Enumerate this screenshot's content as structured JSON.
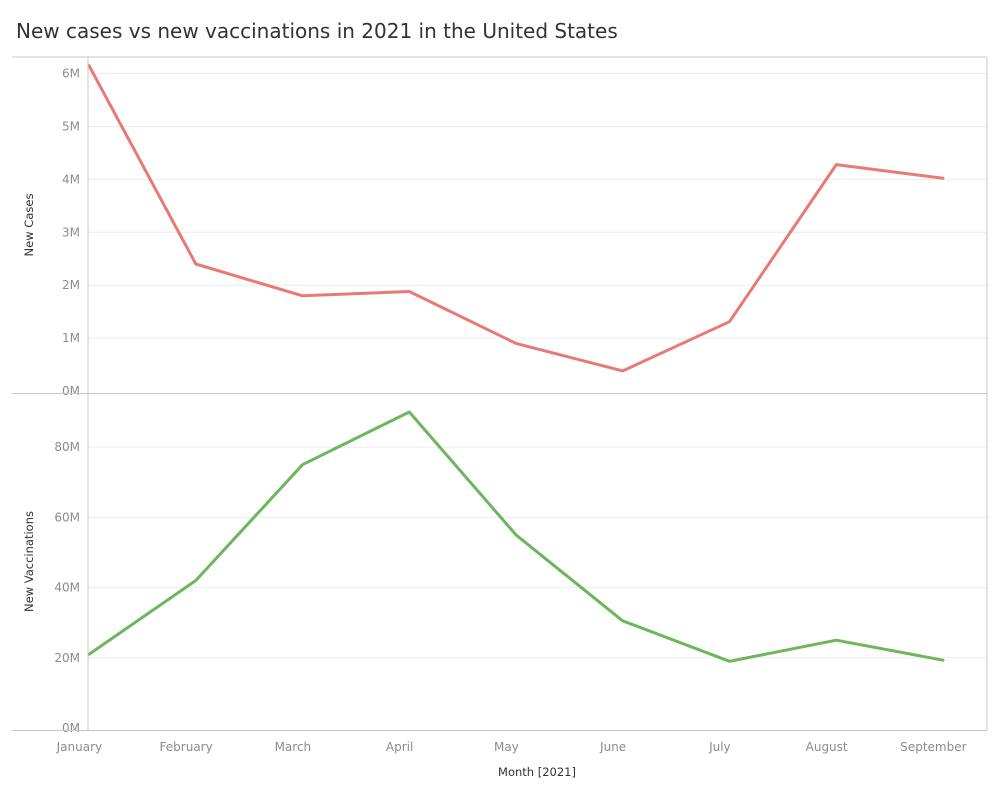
{
  "title": "New cases vs new vaccinations in 2021 in the United States",
  "chart_data": {
    "type": "line",
    "title": "New cases vs new vaccinations in 2021 in the United States",
    "xlabel": "Month [2021]",
    "categories": [
      "January",
      "February",
      "March",
      "April",
      "May",
      "June",
      "July",
      "August",
      "September"
    ],
    "panels": [
      {
        "ylabel": "New Cases",
        "ylim": [
          0,
          6200000
        ],
        "yticks": [
          0,
          1000000,
          2000000,
          3000000,
          4000000,
          5000000,
          6000000
        ],
        "ytick_labels": [
          "0M",
          "1M",
          "2M",
          "3M",
          "4M",
          "5M",
          "6M"
        ],
        "color": "#e87a76",
        "values": [
          6150000,
          2400000,
          1800000,
          1880000,
          900000,
          380000,
          1310000,
          4280000,
          4020000
        ]
      },
      {
        "ylabel": "New Vaccinations",
        "ylim": [
          0,
          92000000
        ],
        "yticks": [
          0,
          20000000,
          40000000,
          60000000,
          80000000
        ],
        "ytick_labels": [
          "0M",
          "20M",
          "40M",
          "60M",
          "80M"
        ],
        "color": "#6db65d",
        "values": [
          21000000,
          42000000,
          75000000,
          90000000,
          55000000,
          30500000,
          19000000,
          25000000,
          19300000
        ]
      }
    ],
    "grid": true,
    "legend": "none"
  }
}
